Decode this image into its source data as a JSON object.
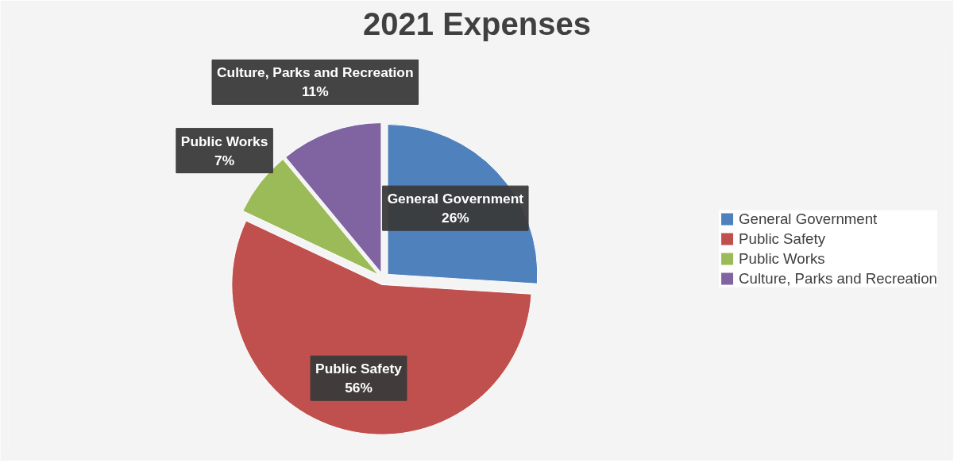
{
  "chart_data": {
    "type": "pie",
    "title": "2021 Expenses",
    "categories": [
      "General Government",
      "Public Safety",
      "Public Works",
      "Culture, Parks and Recreation"
    ],
    "values": [
      26,
      56,
      7,
      11
    ],
    "colors": [
      "#4f81bd",
      "#c0504d",
      "#9bbb59",
      "#8064a2"
    ],
    "value_labels": [
      "26%",
      "56%",
      "7%",
      "11%"
    ],
    "legend": "right"
  }
}
